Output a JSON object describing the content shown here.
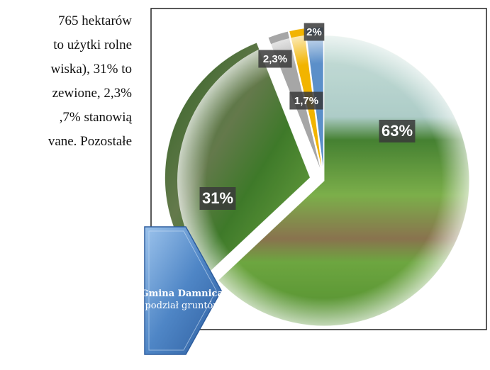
{
  "text_lines": [
    "765  hektarów",
    "to użytki rolne",
    "wiska), 31% to",
    "zewione, 2,3%",
    ",7%  stanowią",
    "vane. Pozostałe"
  ],
  "chart_data": {
    "type": "pie",
    "values": [
      63,
      31,
      2.3,
      1.7,
      2
    ],
    "value_labels": [
      "63%",
      "31%",
      "2,3%",
      "1,7%",
      "2%"
    ],
    "colors": [
      "#6da544",
      "#3d7a2a",
      "#a6a6a6",
      "#f2b400",
      "#5b8fc9"
    ]
  },
  "callout": {
    "title": "Gmina Damnica",
    "dash": "–",
    "subtitle": "podział gruntów"
  }
}
